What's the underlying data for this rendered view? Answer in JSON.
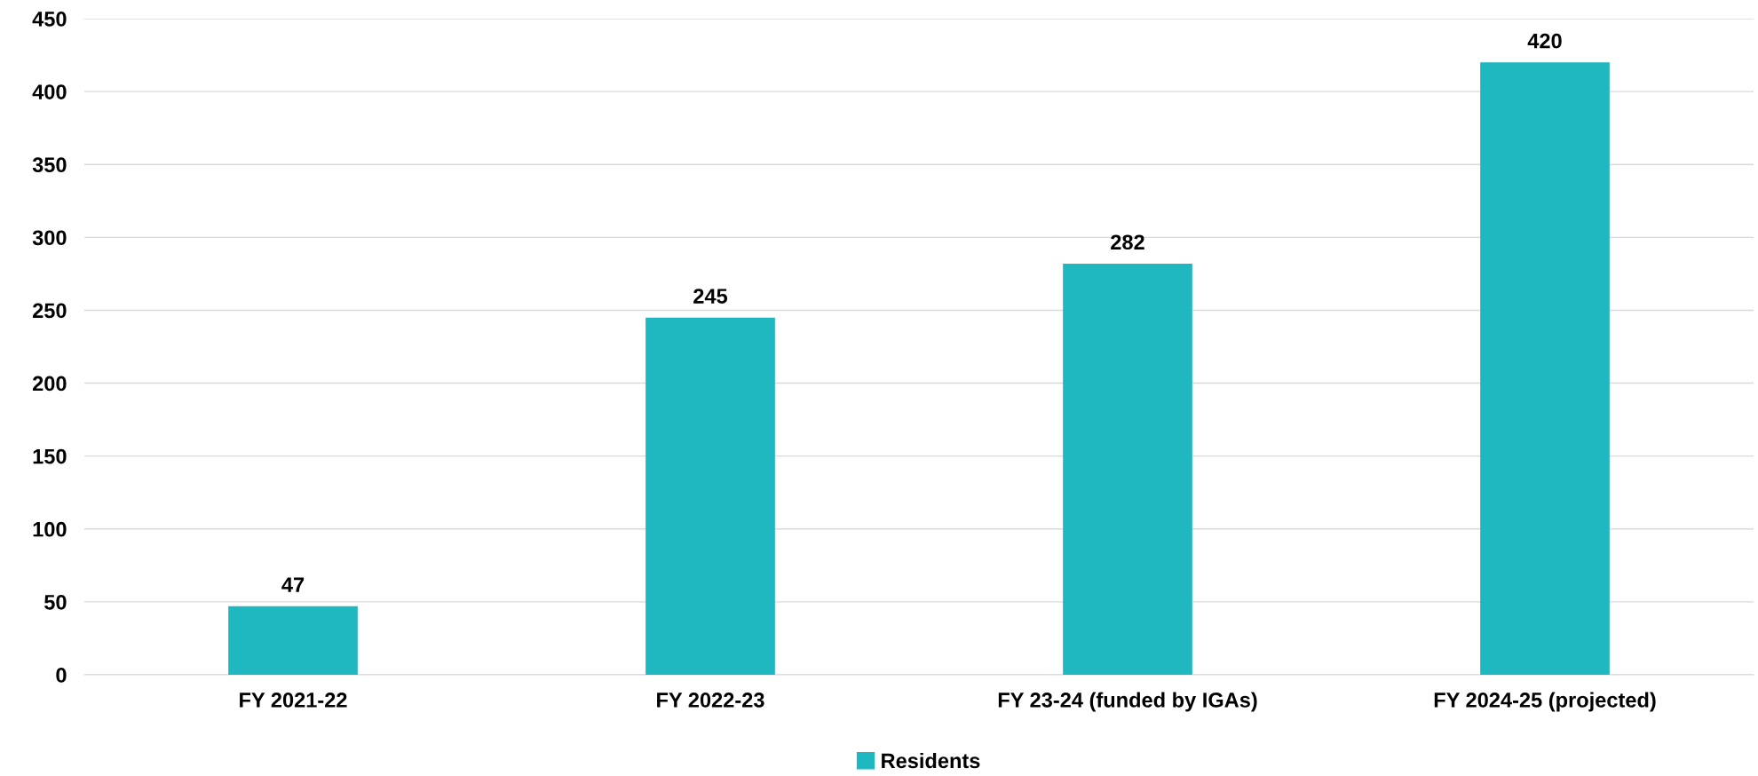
{
  "chart_data": {
    "type": "bar",
    "categories": [
      "FY 2021-22",
      "FY 2022-23",
      "FY 23-24 (funded by IGAs)",
      "FY 2024-25 (projected)"
    ],
    "series": [
      {
        "name": "Residents",
        "color": "#1fb8c1",
        "values": [
          47,
          245,
          282,
          420
        ]
      }
    ],
    "ylim": [
      0,
      450
    ],
    "yticks": [
      0,
      50,
      100,
      150,
      200,
      250,
      300,
      350,
      400,
      450
    ],
    "grid": "y",
    "legend": "bottom",
    "data_labels": true
  }
}
